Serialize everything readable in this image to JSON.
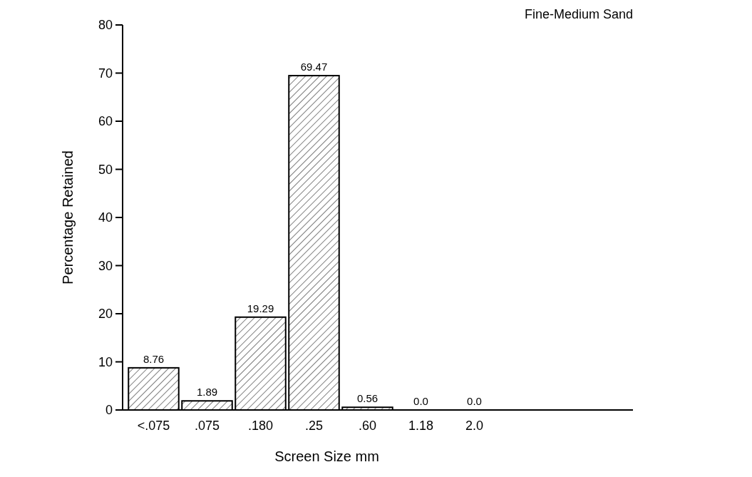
{
  "chart_data": {
    "type": "bar",
    "title": "Fine-Medium Sand",
    "xlabel": "Screen Size mm",
    "ylabel": "Percentage Retained",
    "categories": [
      "<.075",
      ".075",
      ".180",
      ".25",
      ".60",
      "1.18",
      "2.0"
    ],
    "values": [
      8.76,
      1.89,
      19.29,
      69.47,
      0.56,
      0,
      0
    ],
    "value_labels": [
      "8.76",
      "1.89",
      "19.29",
      "69.47",
      "0.56",
      "0.0",
      "0.0"
    ],
    "color": "#000000",
    "ylim": [
      0,
      80
    ],
    "yticks": [
      0,
      10,
      20,
      30,
      40,
      50,
      60,
      70,
      80
    ],
    "grid": false
  }
}
